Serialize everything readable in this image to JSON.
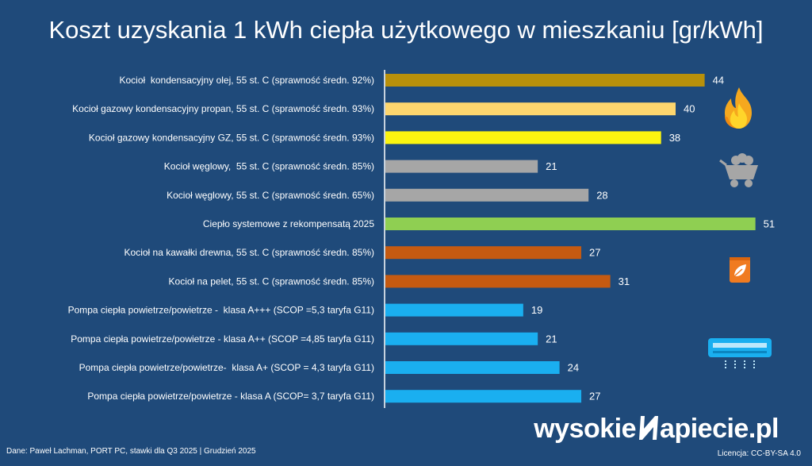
{
  "chart_data": {
    "type": "bar",
    "orientation": "horizontal",
    "title": "Koszt uzyskania 1 kWh ciepła użytkowego w mieszkaniu [gr/kWh]",
    "categories": [
      "Kocioł  kondensacyjny olej, 55 st. C (sprawność średn. 92%)",
      "Kocioł gazowy kondensacyjny propan, 55 st. C (sprawność średn. 93%)",
      "Kocioł gazowy kondensacyjny GZ, 55 st. C (sprawność średn. 93%)",
      "Kocioł węglowy,  55 st. C (sprawność średn. 85%)",
      "Kocioł węglowy, 55 st. C (sprawność średn. 65%)",
      "Ciepło systemowe z rekompensatą 2025",
      "Kocioł na kawałki drewna, 55 st. C (sprawność średn. 85%)",
      "Kocioł na pelet, 55 st. C (sprawność średn. 85%)",
      "Pompa ciepła powietrze/powietrze -  klasa A+++ (SCOP =5,3 taryfa G11)",
      "Pompa ciepła powietrze/powietrze - klasa A++ (SCOP =4,85 taryfa G11)",
      "Pompa ciepła powietrze/powietrze-  klasa A+ (SCOP = 4,3 taryfa G11)",
      "Pompa ciepła powietrze/powietrze - klasa A (SCOP= 3,7 taryfa G11)"
    ],
    "values": [
      44,
      40,
      38,
      21,
      28,
      51,
      27,
      31,
      19,
      21,
      24,
      27
    ],
    "colors": [
      "#b8900a",
      "#fdd66e",
      "#fbf50f",
      "#a6a6a6",
      "#a6a6a6",
      "#8fcf52",
      "#c55a11",
      "#c55a11",
      "#1aaff0",
      "#1aaff0",
      "#1aaff0",
      "#1aaff0"
    ],
    "xlim": [
      0,
      52
    ],
    "grid": false,
    "legend": "none"
  },
  "footer": {
    "source": "Dane: Paweł Lachman, PORT PC, stawki dla Q3 2025  |  Grudzień 2025",
    "brand_left": "wysokie",
    "brand_right": "apiecie.pl",
    "license": "Licencja: CC-BY-SA 4.0"
  },
  "icons": [
    "flame-icon",
    "coal-cart-icon",
    "pellet-bag-icon",
    "air-conditioner-icon"
  ]
}
